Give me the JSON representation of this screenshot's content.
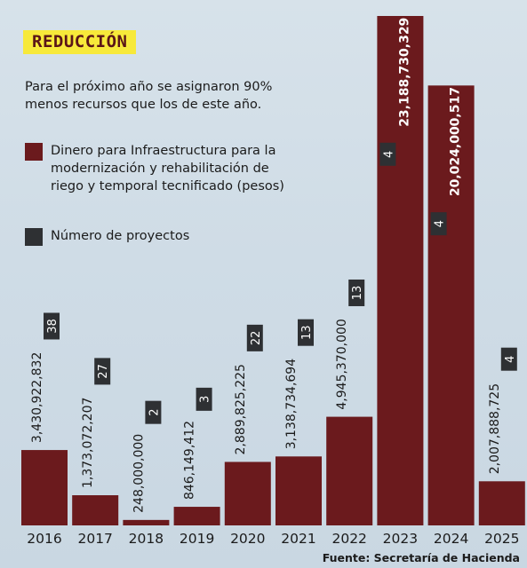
{
  "title": "REDUCCIÓN",
  "subtitle": "Para el próximo año se asignaron 90% menos recursos que los de este año.",
  "source": "Fuente: Secretaría de Hacienda",
  "legend": {
    "money": "Dinero para Infraestructura para la modernización y rehabilitación de riego y temporal tecnificado (pesos)",
    "projects": "Número de proyectos"
  },
  "colors": {
    "bar": "#6b1a1d",
    "badge": "#2e3033",
    "background": "#cfdce6",
    "title_highlight": "#f7e93a"
  },
  "chart_data": {
    "type": "bar",
    "categories": [
      "2016",
      "2017",
      "2018",
      "2019",
      "2020",
      "2021",
      "2022",
      "2023",
      "2024",
      "2025"
    ],
    "series": [
      {
        "name": "Dinero para Infraestructura para la modernización y rehabilitación de riego y temporal tecnificado (pesos)",
        "values": [
          3430922832,
          1373072207,
          248000000,
          846149412,
          2889825225,
          3138734694,
          4945370000,
          23188730329,
          20024000517,
          2007888725
        ],
        "labels": [
          "3,430,922,832",
          "1,373,072,207",
          "248,000,000",
          "846,149,412",
          "2,889,825,225",
          "3,138,734,694",
          "4,945,370,000",
          "23,188,730,329",
          "20,024,000,517",
          "2,007,888,725"
        ]
      },
      {
        "name": "Número de proyectos",
        "values": [
          38,
          27,
          2,
          3,
          22,
          13,
          13,
          4,
          4,
          4
        ],
        "labels": [
          "38",
          "27",
          "2",
          "3",
          "22",
          "13",
          "13",
          "4",
          "4",
          "4"
        ]
      }
    ],
    "ylim": [
      0,
      23188730329
    ],
    "grid": false,
    "legend_position": "top-left"
  }
}
